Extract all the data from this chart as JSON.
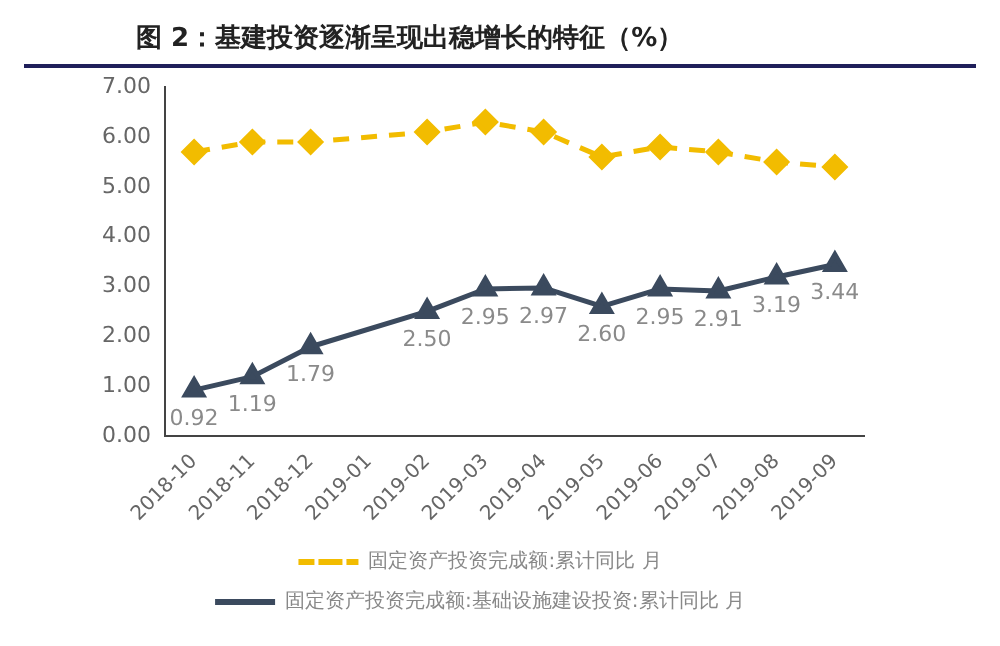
{
  "chart_data": {
    "type": "line",
    "title": "图 2：基建投资逐渐呈现出稳增长的特征（%）",
    "categories": [
      "2018-10",
      "2018-11",
      "2018-12",
      "2019-01",
      "2019-02",
      "2019-03",
      "2019-04",
      "2019-05",
      "2019-06",
      "2019-07",
      "2019-08",
      "2019-09"
    ],
    "series": [
      {
        "name": "固定资产投资完成额:累计同比 月",
        "color": "#f2bc00",
        "line_style": "dashed",
        "marker": "diamond",
        "values": [
          5.7,
          5.9,
          5.9,
          null,
          6.1,
          6.3,
          6.1,
          5.6,
          5.8,
          5.7,
          5.5,
          5.4
        ]
      },
      {
        "name": "固定资产投资完成额:基础设施建设投资:累计同比 月",
        "color": "#3b4a5e",
        "line_style": "solid",
        "marker": "triangle",
        "values": [
          0.92,
          1.19,
          1.79,
          null,
          2.5,
          2.95,
          2.97,
          2.6,
          2.95,
          2.91,
          3.19,
          3.44
        ],
        "value_labels": [
          "0.92",
          "1.19",
          "1.79",
          null,
          "2.50",
          "2.95",
          "2.97",
          "2.60",
          "2.95",
          "2.91",
          "3.19",
          "3.44"
        ]
      }
    ],
    "ylim": [
      0,
      7
    ],
    "yticks": [
      {
        "value": 0,
        "label": "0.00"
      },
      {
        "value": 1,
        "label": "1.00"
      },
      {
        "value": 2,
        "label": "2.00"
      },
      {
        "value": 3,
        "label": "3.00"
      },
      {
        "value": 4,
        "label": "4.00"
      },
      {
        "value": 5,
        "label": "5.00"
      },
      {
        "value": 6,
        "label": "6.00"
      },
      {
        "value": 7,
        "label": "7.00"
      }
    ],
    "grid": false,
    "legend": "bottom"
  }
}
